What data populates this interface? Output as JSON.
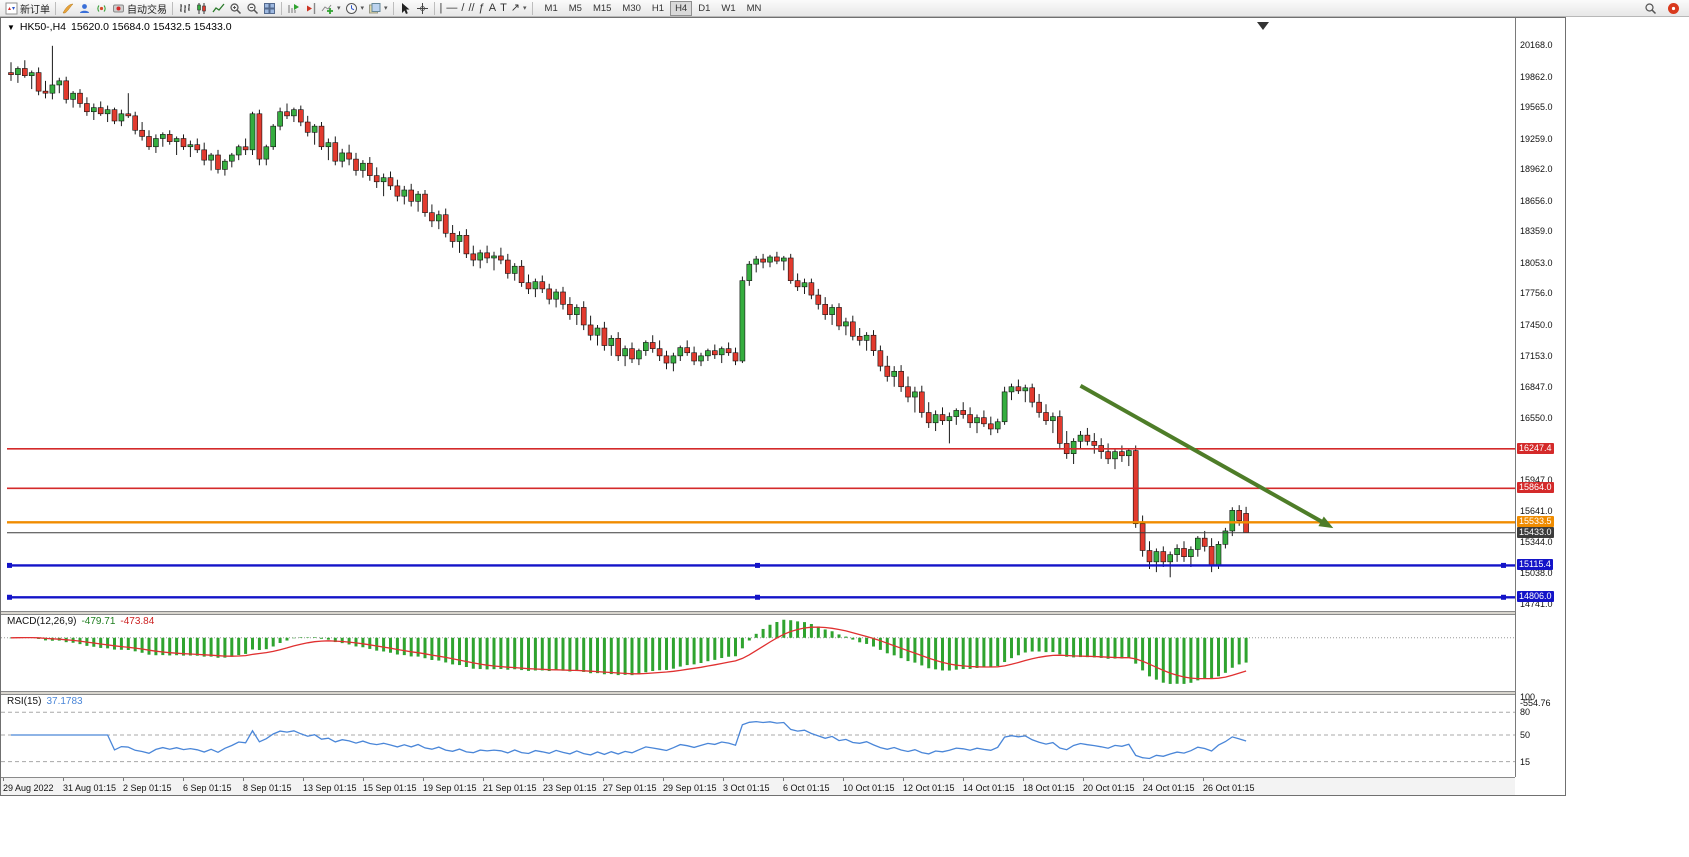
{
  "toolbar": {
    "new_order": "新订单",
    "autotrading": "自动交易",
    "timeframes": [
      "M1",
      "M5",
      "M15",
      "M30",
      "H1",
      "H4",
      "D1",
      "W1",
      "MN"
    ],
    "active_timeframe": "H4"
  },
  "window": {
    "symbol_period": "HK50-,H4",
    "ohlc": "15620.0 15684.0 15432.5 15433.0"
  },
  "chart_data": {
    "type": "candlestick",
    "symbol": "HK50-",
    "timeframe": "H4",
    "colors": {
      "up": "#35ad3f",
      "down": "#e23a2e"
    },
    "price_range": {
      "max": 20430,
      "min": 14663
    },
    "price_axis_labels": [
      "20168.0",
      "19862.0",
      "19565.0",
      "19259.0",
      "18962.0",
      "18656.0",
      "18359.0",
      "18053.0",
      "17756.0",
      "17450.0",
      "17153.0",
      "16847.0",
      "16550.0",
      "16244.0",
      "15947.0",
      "15641.0",
      "15344.0",
      "15038.0",
      "14741.0"
    ],
    "time_axis_labels": [
      "29 Aug 2022",
      "31 Aug 01:15",
      "2 Sep 01:15",
      "6 Sep 01:15",
      "8 Sep 01:15",
      "13 Sep 01:15",
      "15 Sep 01:15",
      "19 Sep 01:15",
      "21 Sep 01:15",
      "23 Sep 01:15",
      "27 Sep 01:15",
      "29 Sep 01:15",
      "3 Oct 01:15",
      "6 Oct 01:15",
      "10 Oct 01:15",
      "12 Oct 01:15",
      "14 Oct 01:15",
      "18 Oct 01:15",
      "20 Oct 01:15",
      "24 Oct 01:15",
      "26 Oct 01:15"
    ],
    "horizontal_lines": [
      {
        "price": 16247.4,
        "label": "16247.4",
        "color": "#d42a2a",
        "weight": 1.6,
        "selected": false,
        "current": false
      },
      {
        "price": 15864.0,
        "label": "15864.0",
        "color": "#d42a2a",
        "weight": 1.6,
        "selected": false,
        "current": false
      },
      {
        "price": 15533.5,
        "label": "15533.5",
        "color": "#f08c00",
        "weight": 2.4,
        "selected": false,
        "current": false
      },
      {
        "price": 15433.0,
        "label": "15433.0",
        "color": "#3c3c3c",
        "weight": 1.0,
        "selected": false,
        "current": true
      },
      {
        "price": 15115.4,
        "label": "15115.4",
        "color": "#1414c8",
        "weight": 2.4,
        "selected": true,
        "current": false
      },
      {
        "price": 14806.0,
        "label": "14806.0",
        "color": "#1414c8",
        "weight": 2.4,
        "selected": true,
        "current": false
      }
    ],
    "trend_arrow": {
      "from_index": 155,
      "from_price": 16860,
      "to_index": 190.5,
      "to_price": 15520,
      "color": "#4e7d28",
      "width": 4
    },
    "candles": [
      [
        19900,
        20000,
        19820,
        19880
      ],
      [
        19880,
        19960,
        19800,
        19940
      ],
      [
        19940,
        20020,
        19850,
        19870
      ],
      [
        19870,
        19920,
        19740,
        19900
      ],
      [
        19900,
        19950,
        19680,
        19720
      ],
      [
        19720,
        19820,
        19650,
        19700
      ],
      [
        19700,
        20160,
        19640,
        19780
      ],
      [
        19780,
        19850,
        19700,
        19820
      ],
      [
        19820,
        19860,
        19600,
        19640
      ],
      [
        19640,
        19720,
        19560,
        19700
      ],
      [
        19700,
        19740,
        19560,
        19600
      ],
      [
        19600,
        19660,
        19480,
        19520
      ],
      [
        19520,
        19600,
        19440,
        19560
      ],
      [
        19560,
        19620,
        19480,
        19500
      ],
      [
        19500,
        19580,
        19420,
        19540
      ],
      [
        19540,
        19560,
        19400,
        19430
      ],
      [
        19430,
        19540,
        19380,
        19500
      ],
      [
        19500,
        19700,
        19460,
        19480
      ],
      [
        19480,
        19520,
        19300,
        19340
      ],
      [
        19340,
        19420,
        19240,
        19280
      ],
      [
        19280,
        19340,
        19150,
        19180
      ],
      [
        19180,
        19300,
        19120,
        19260
      ],
      [
        19260,
        19320,
        19180,
        19300
      ],
      [
        19300,
        19340,
        19200,
        19230
      ],
      [
        19230,
        19280,
        19100,
        19260
      ],
      [
        19260,
        19300,
        19150,
        19180
      ],
      [
        19180,
        19240,
        19080,
        19200
      ],
      [
        19200,
        19260,
        19120,
        19150
      ],
      [
        19150,
        19220,
        19000,
        19050
      ],
      [
        19050,
        19120,
        18950,
        19100
      ],
      [
        19100,
        19150,
        18920,
        18960
      ],
      [
        18960,
        19060,
        18900,
        19040
      ],
      [
        19040,
        19120,
        18980,
        19100
      ],
      [
        19100,
        19200,
        19050,
        19180
      ],
      [
        19180,
        19260,
        19100,
        19150
      ],
      [
        19150,
        19520,
        19100,
        19500
      ],
      [
        19500,
        19540,
        19000,
        19060
      ],
      [
        19060,
        19200,
        19000,
        19180
      ],
      [
        19180,
        19400,
        19150,
        19380
      ],
      [
        19380,
        19560,
        19340,
        19520
      ],
      [
        19520,
        19600,
        19450,
        19480
      ],
      [
        19480,
        19560,
        19420,
        19540
      ],
      [
        19540,
        19580,
        19380,
        19420
      ],
      [
        19420,
        19480,
        19280,
        19320
      ],
      [
        19320,
        19400,
        19200,
        19380
      ],
      [
        19380,
        19420,
        19150,
        19180
      ],
      [
        19180,
        19260,
        19050,
        19220
      ],
      [
        19220,
        19280,
        19000,
        19040
      ],
      [
        19040,
        19160,
        18980,
        19120
      ],
      [
        19120,
        19200,
        19000,
        19060
      ],
      [
        19060,
        19120,
        18900,
        18950
      ],
      [
        18950,
        19050,
        18880,
        19020
      ],
      [
        19020,
        19080,
        18850,
        18900
      ],
      [
        18900,
        18980,
        18780,
        18840
      ],
      [
        18840,
        18920,
        18700,
        18880
      ],
      [
        18880,
        18940,
        18760,
        18800
      ],
      [
        18800,
        18860,
        18650,
        18700
      ],
      [
        18700,
        18800,
        18620,
        18760
      ],
      [
        18760,
        18820,
        18600,
        18650
      ],
      [
        18650,
        18750,
        18550,
        18720
      ],
      [
        18720,
        18760,
        18500,
        18540
      ],
      [
        18540,
        18620,
        18400,
        18460
      ],
      [
        18460,
        18560,
        18380,
        18520
      ],
      [
        18520,
        18580,
        18300,
        18340
      ],
      [
        18340,
        18420,
        18200,
        18260
      ],
      [
        18260,
        18360,
        18150,
        18320
      ],
      [
        18320,
        18380,
        18100,
        18140
      ],
      [
        18140,
        18220,
        18020,
        18080
      ],
      [
        18080,
        18180,
        18000,
        18150
      ],
      [
        18150,
        18220,
        18050,
        18100
      ],
      [
        18100,
        18160,
        17980,
        18120
      ],
      [
        18120,
        18200,
        18040,
        18080
      ],
      [
        18080,
        18140,
        17900,
        17950
      ],
      [
        17950,
        18050,
        17880,
        18020
      ],
      [
        18020,
        18080,
        17820,
        17860
      ],
      [
        17860,
        17940,
        17750,
        17800
      ],
      [
        17800,
        17900,
        17720,
        17870
      ],
      [
        17870,
        17930,
        17760,
        17800
      ],
      [
        17800,
        17850,
        17650,
        17700
      ],
      [
        17700,
        17800,
        17620,
        17770
      ],
      [
        17770,
        17820,
        17600,
        17650
      ],
      [
        17650,
        17720,
        17500,
        17550
      ],
      [
        17550,
        17650,
        17450,
        17620
      ],
      [
        17620,
        17680,
        17400,
        17450
      ],
      [
        17450,
        17540,
        17300,
        17350
      ],
      [
        17350,
        17450,
        17250,
        17420
      ],
      [
        17420,
        17480,
        17200,
        17250
      ],
      [
        17250,
        17350,
        17150,
        17320
      ],
      [
        17320,
        17380,
        17100,
        17150
      ],
      [
        17150,
        17250,
        17050,
        17220
      ],
      [
        17220,
        17280,
        17080,
        17120
      ],
      [
        17120,
        17220,
        17060,
        17200
      ],
      [
        17200,
        17300,
        17150,
        17280
      ],
      [
        17280,
        17350,
        17180,
        17220
      ],
      [
        17220,
        17300,
        17100,
        17150
      ],
      [
        17150,
        17200,
        17020,
        17080
      ],
      [
        17080,
        17180,
        17000,
        17150
      ],
      [
        17150,
        17250,
        17100,
        17230
      ],
      [
        17230,
        17300,
        17150,
        17180
      ],
      [
        17180,
        17240,
        17060,
        17100
      ],
      [
        17100,
        17180,
        17050,
        17150
      ],
      [
        17150,
        17220,
        17100,
        17200
      ],
      [
        17200,
        17260,
        17120,
        17160
      ],
      [
        17160,
        17240,
        17080,
        17220
      ],
      [
        17220,
        17280,
        17150,
        17180
      ],
      [
        17180,
        17230,
        17060,
        17100
      ],
      [
        17100,
        17920,
        17080,
        17880
      ],
      [
        17880,
        18070,
        17830,
        18040
      ],
      [
        18040,
        18120,
        17960,
        18090
      ],
      [
        18090,
        18140,
        18000,
        18060
      ],
      [
        18060,
        18130,
        18010,
        18110
      ],
      [
        18110,
        18160,
        18040,
        18070
      ],
      [
        18070,
        18120,
        17980,
        18100
      ],
      [
        18100,
        18140,
        17850,
        17880
      ],
      [
        17880,
        17950,
        17780,
        17820
      ],
      [
        17820,
        17900,
        17750,
        17860
      ],
      [
        17860,
        17900,
        17700,
        17740
      ],
      [
        17740,
        17800,
        17600,
        17650
      ],
      [
        17650,
        17720,
        17500,
        17550
      ],
      [
        17550,
        17650,
        17450,
        17620
      ],
      [
        17620,
        17660,
        17400,
        17440
      ],
      [
        17440,
        17520,
        17350,
        17480
      ],
      [
        17480,
        17540,
        17300,
        17340
      ],
      [
        17340,
        17420,
        17250,
        17300
      ],
      [
        17300,
        17380,
        17200,
        17350
      ],
      [
        17350,
        17400,
        17150,
        17200
      ],
      [
        17200,
        17250,
        17000,
        17050
      ],
      [
        17050,
        17150,
        16900,
        16950
      ],
      [
        16950,
        17050,
        16850,
        17000
      ],
      [
        17000,
        17060,
        16800,
        16850
      ],
      [
        16850,
        16950,
        16700,
        16750
      ],
      [
        16750,
        16850,
        16600,
        16800
      ],
      [
        16800,
        16860,
        16550,
        16600
      ],
      [
        16600,
        16700,
        16450,
        16500
      ],
      [
        16500,
        16620,
        16420,
        16580
      ],
      [
        16580,
        16650,
        16480,
        16520
      ],
      [
        16520,
        16600,
        16300,
        16560
      ],
      [
        16560,
        16640,
        16480,
        16620
      ],
      [
        16620,
        16700,
        16540,
        16580
      ],
      [
        16580,
        16650,
        16450,
        16500
      ],
      [
        16500,
        16580,
        16400,
        16550
      ],
      [
        16550,
        16620,
        16460,
        16490
      ],
      [
        16490,
        16560,
        16380,
        16440
      ],
      [
        16440,
        16540,
        16400,
        16510
      ],
      [
        16510,
        16850,
        16480,
        16800
      ],
      [
        16800,
        16880,
        16720,
        16850
      ],
      [
        16850,
        16920,
        16780,
        16810
      ],
      [
        16810,
        16870,
        16700,
        16840
      ],
      [
        16840,
        16880,
        16650,
        16700
      ],
      [
        16700,
        16780,
        16550,
        16600
      ],
      [
        16600,
        16680,
        16480,
        16520
      ],
      [
        16520,
        16600,
        16400,
        16560
      ],
      [
        16560,
        16620,
        16250,
        16300
      ],
      [
        16300,
        16420,
        16150,
        16200
      ],
      [
        16200,
        16350,
        16100,
        16320
      ],
      [
        16320,
        16420,
        16250,
        16380
      ],
      [
        16380,
        16450,
        16280,
        16320
      ],
      [
        16320,
        16400,
        16200,
        16280
      ],
      [
        16280,
        16350,
        16150,
        16220
      ],
      [
        16220,
        16300,
        16100,
        16150
      ],
      [
        16150,
        16250,
        16050,
        16220
      ],
      [
        16220,
        16280,
        16120,
        16180
      ],
      [
        16180,
        16250,
        16080,
        16230
      ],
      [
        16230,
        16280,
        15480,
        15520
      ],
      [
        15520,
        15600,
        15200,
        15260
      ],
      [
        15260,
        15350,
        15080,
        15150
      ],
      [
        15150,
        15280,
        15050,
        15250
      ],
      [
        15250,
        15300,
        15100,
        15150
      ],
      [
        15150,
        15250,
        15000,
        15220
      ],
      [
        15220,
        15320,
        15150,
        15280
      ],
      [
        15280,
        15350,
        15150,
        15200
      ],
      [
        15200,
        15300,
        15100,
        15270
      ],
      [
        15270,
        15400,
        15200,
        15380
      ],
      [
        15380,
        15450,
        15250,
        15300
      ],
      [
        15300,
        15380,
        15050,
        15120
      ],
      [
        15120,
        15350,
        15080,
        15320
      ],
      [
        15320,
        15480,
        15280,
        15450
      ],
      [
        15450,
        15680,
        15400,
        15650
      ],
      [
        15650,
        15700,
        15500,
        15550
      ],
      [
        15620,
        15684,
        15432.5,
        15433
      ]
    ]
  },
  "indicators": {
    "macd": {
      "label": "MACD(12,26,9)",
      "fast": 12,
      "slow": 26,
      "signal": 9,
      "value": "-479.71",
      "signal_value": "-473.84",
      "scale_label": "-554.76",
      "histogram_color": "#2fa32f",
      "signal_color": "#e03030"
    },
    "rsi": {
      "label": "RSI(15)",
      "period": 15,
      "value": "37.1783",
      "line_color": "#4a86d8",
      "levels": [
        "100",
        "80",
        "50",
        "15"
      ]
    }
  }
}
